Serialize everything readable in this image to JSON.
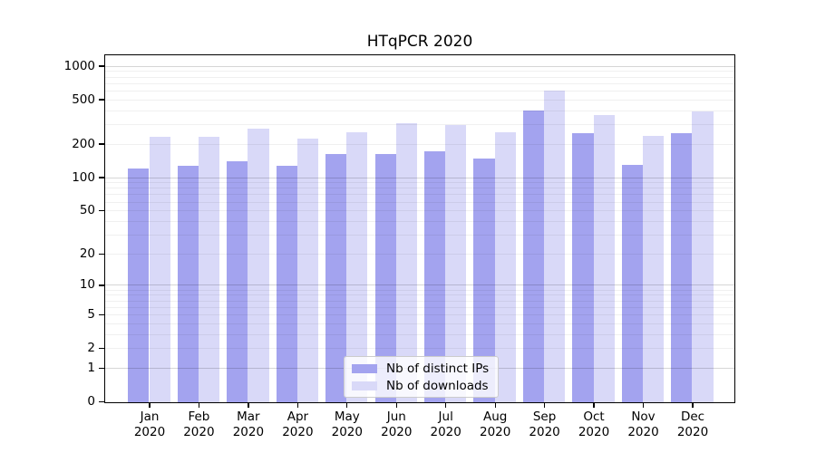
{
  "chart_data": {
    "type": "bar",
    "title": "HTqPCR 2020",
    "categories": [
      "Jan",
      "Feb",
      "Mar",
      "Apr",
      "May",
      "Jun",
      "Jul",
      "Aug",
      "Sep",
      "Oct",
      "Nov",
      "Dec"
    ],
    "category_year": "2020",
    "series": [
      {
        "name": "Nb of distinct IPs",
        "color": "#a3a3ef",
        "values": [
          121,
          128,
          142,
          130,
          164,
          165,
          174,
          149,
          405,
          252,
          131,
          254
        ]
      },
      {
        "name": "Nb of downloads",
        "color": "#d9d9f8",
        "values": [
          234,
          236,
          276,
          227,
          256,
          310,
          298,
          256,
          610,
          370,
          241,
          400
        ]
      }
    ],
    "yaxis": {
      "scale": "log1p",
      "ticks": [
        1000,
        500,
        200,
        100,
        50,
        20,
        10,
        5,
        2,
        1,
        0
      ],
      "max": 1240
    },
    "xlabel": "",
    "ylabel": "",
    "grid": true,
    "legend_position": "bottom-center",
    "colors": {
      "background": "#ffffff",
      "axis": "#000000",
      "grid_major": "rgba(0,0,0,0.16)",
      "grid_minor": "rgba(0,0,0,0.06)"
    }
  }
}
